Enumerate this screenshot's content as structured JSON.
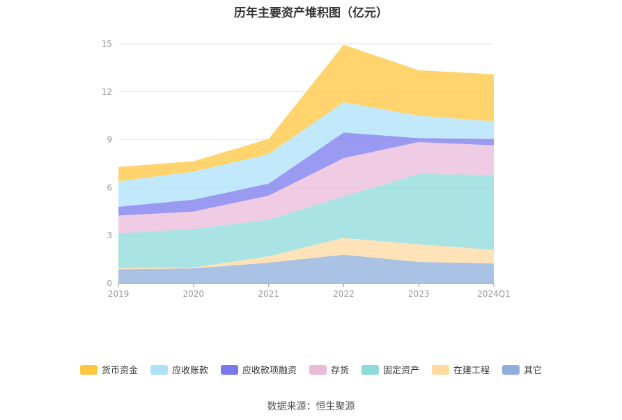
{
  "chart_data": {
    "type": "area",
    "stacked": true,
    "title": "历年主要资产堆积图（亿元）",
    "categories": [
      "2019",
      "2020",
      "2021",
      "2022",
      "2023",
      "2024Q1"
    ],
    "yticks": [
      "0",
      "3",
      "6",
      "9",
      "12",
      "15"
    ],
    "ylim": [
      0,
      15
    ],
    "grid": true,
    "legend_position": "bottom",
    "series": [
      {
        "name": "其它",
        "color": "#8eaedb",
        "values": [
          0.9,
          0.95,
          1.3,
          1.8,
          1.35,
          1.25
        ]
      },
      {
        "name": "在建工程",
        "color": "#ffd9a0",
        "values": [
          0.05,
          0.05,
          0.4,
          1.05,
          1.1,
          0.85
        ]
      },
      {
        "name": "固定资产",
        "color": "#8ed9d9",
        "values": [
          2.2,
          2.4,
          2.3,
          2.6,
          4.4,
          4.7
        ]
      },
      {
        "name": "存货",
        "color": "#e9bbd9",
        "values": [
          1.1,
          1.1,
          1.5,
          2.4,
          2.0,
          1.85
        ]
      },
      {
        "name": "应收款项融资",
        "color": "#7a78ef",
        "values": [
          0.55,
          0.75,
          0.75,
          1.6,
          0.25,
          0.4
        ]
      },
      {
        "name": "应收账款",
        "color": "#aee1f9",
        "values": [
          1.6,
          1.75,
          1.85,
          1.9,
          1.4,
          1.1
        ]
      },
      {
        "name": "货币资金",
        "color": "#ffc53d",
        "values": [
          0.9,
          0.65,
          0.95,
          3.6,
          2.85,
          2.95
        ]
      }
    ],
    "legend_order": [
      "货币资金",
      "应收账款",
      "应收款项融资",
      "存货",
      "固定资产",
      "在建工程",
      "其它"
    ],
    "legend_colors": [
      "#ffc53d",
      "#aee1f9",
      "#7a78ef",
      "#e9bbd9",
      "#8ed9d9",
      "#ffd9a0",
      "#8eaedb"
    ]
  },
  "source": "数据来源：恒生聚源"
}
